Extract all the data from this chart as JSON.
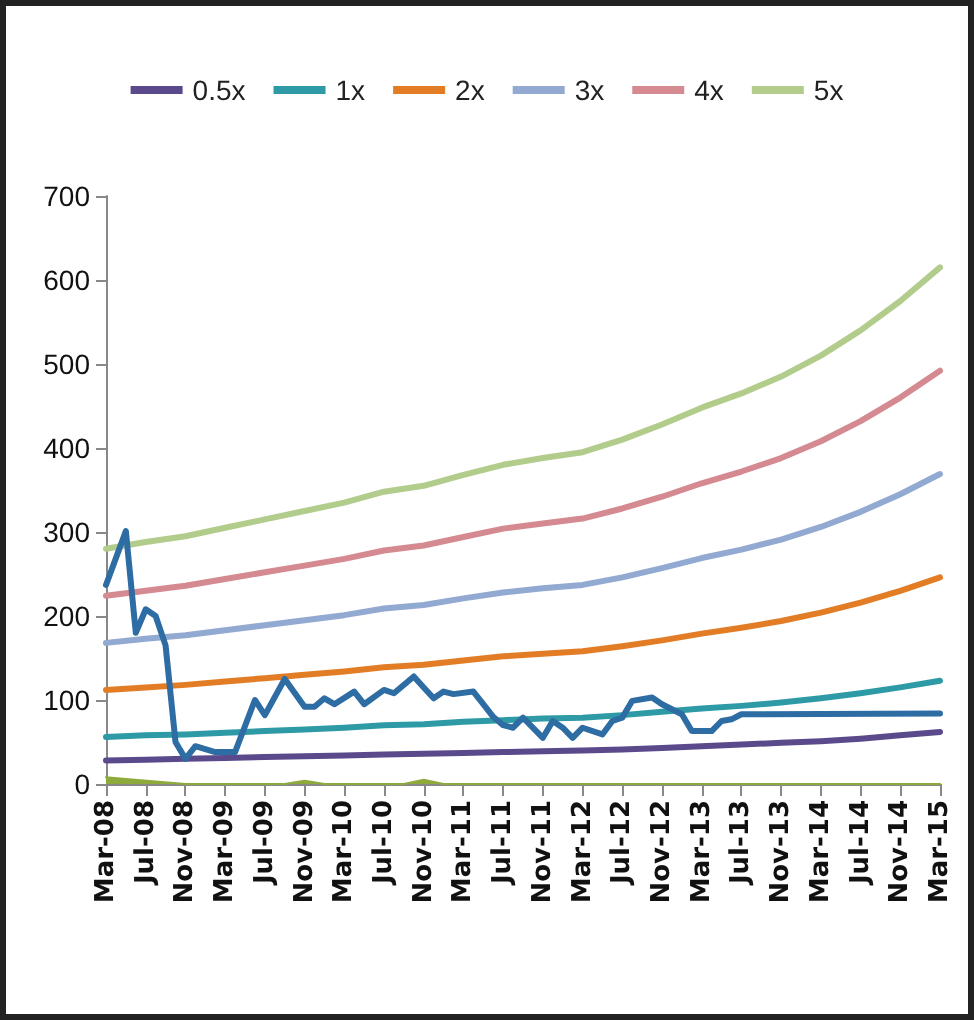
{
  "chart_data": {
    "type": "line",
    "legend": "top",
    "marker": "none",
    "x": [
      "2008-03",
      "2008-07",
      "2008-11",
      "2009-03",
      "2009-07",
      "2009-11",
      "2010-03",
      "2010-07",
      "2010-11",
      "2011-03",
      "2011-07",
      "2011-11",
      "2012-03",
      "2012-07",
      "2012-11",
      "2013-03",
      "2013-07",
      "2013-11",
      "2014-03",
      "2014-07",
      "2014-11",
      "2015-03"
    ],
    "xlim": [
      "2008-03",
      "2015-03"
    ],
    "xticks": [
      {
        "value": "2008-03",
        "label": "Mar-08"
      },
      {
        "value": "2008-07",
        "label": "Jul-08"
      },
      {
        "value": "2008-11",
        "label": "Nov-08"
      },
      {
        "value": "2009-03",
        "label": "Mar-09"
      },
      {
        "value": "2009-07",
        "label": "Jul-09"
      },
      {
        "value": "2009-11",
        "label": "Nov-09"
      },
      {
        "value": "2010-03",
        "label": "Mar-10"
      },
      {
        "value": "2010-07",
        "label": "Jul-10"
      },
      {
        "value": "2010-11",
        "label": "Nov-10"
      },
      {
        "value": "2011-03",
        "label": "Mar-11"
      },
      {
        "value": "2011-07",
        "label": "Jul-11"
      },
      {
        "value": "2011-11",
        "label": "Nov-11"
      },
      {
        "value": "2012-03",
        "label": "Mar-12"
      },
      {
        "value": "2012-07",
        "label": "Jul-12"
      },
      {
        "value": "2012-11",
        "label": "Nov-12"
      },
      {
        "value": "2013-03",
        "label": "Mar-13"
      },
      {
        "value": "2013-07",
        "label": "Jul-13"
      },
      {
        "value": "2013-11",
        "label": "Nov-13"
      },
      {
        "value": "2014-03",
        "label": "Mar-14"
      },
      {
        "value": "2014-07",
        "label": "Jul-14"
      },
      {
        "value": "2014-11",
        "label": "Nov-14"
      },
      {
        "value": "2015-03",
        "label": "Mar-15"
      }
    ],
    "ylim": [
      0,
      700
    ],
    "yticks": [
      0,
      100,
      200,
      300,
      400,
      500,
      600,
      700
    ],
    "series": [
      {
        "type": "area",
        "color": "#8faa3c",
        "x": [
          "2008-03",
          "2008-05",
          "2008-08",
          "2008-11",
          "2009-09",
          "2009-11",
          "2010-01",
          "2010-09",
          "2010-11",
          "2011-01",
          "2015-03"
        ],
        "values": [
          8,
          6,
          3,
          0,
          0,
          4,
          0,
          0,
          5,
          0,
          0
        ]
      },
      {
        "name": "0.5x",
        "color": "#5b4a8b",
        "values": [
          28,
          29,
          30,
          31,
          32,
          33,
          34,
          35,
          36,
          37,
          38,
          39,
          40,
          41,
          43,
          45,
          47,
          49,
          51,
          54,
          58,
          62
        ]
      },
      {
        "name": "1x",
        "color": "#2e9aa6",
        "values": [
          56,
          58,
          59,
          61,
          63,
          65,
          67,
          70,
          71,
          74,
          76,
          78,
          79,
          82,
          86,
          90,
          93,
          97,
          102,
          108,
          115,
          123
        ]
      },
      {
        "name": "2x",
        "color": "#e27d26",
        "values": [
          112,
          115,
          118,
          122,
          126,
          130,
          134,
          139,
          142,
          147,
          152,
          155,
          158,
          164,
          171,
          179,
          186,
          194,
          204,
          216,
          230,
          246
        ]
      },
      {
        "name": "3x",
        "color": "#92a9d1",
        "values": [
          168,
          173,
          177,
          183,
          189,
          195,
          201,
          209,
          213,
          221,
          228,
          233,
          237,
          246,
          257,
          269,
          279,
          291,
          306,
          324,
          345,
          369
        ]
      },
      {
        "name": "4x",
        "color": "#d48a90",
        "values": [
          224,
          230,
          236,
          244,
          252,
          260,
          268,
          278,
          284,
          294,
          304,
          310,
          316,
          328,
          342,
          358,
          372,
          388,
          408,
          432,
          460,
          492
        ]
      },
      {
        "name": "5x",
        "color": "#b2cc8c",
        "values": [
          280,
          288,
          295,
          305,
          315,
          325,
          335,
          348,
          355,
          368,
          380,
          388,
          395,
          410,
          428,
          448,
          465,
          485,
          510,
          540,
          575,
          615
        ]
      },
      {
        "color": "#2e6ca4",
        "x": [
          "2008-03",
          "2008-05",
          "2008-06",
          "2008-07",
          "2008-08",
          "2008-09",
          "2008-10",
          "2008-11",
          "2008-12",
          "2009-02",
          "2009-04",
          "2009-06",
          "2009-07",
          "2009-09",
          "2009-11",
          "2009-12",
          "2010-01",
          "2010-02",
          "2010-04",
          "2010-05",
          "2010-07",
          "2010-08",
          "2010-10",
          "2010-11",
          "2010-12",
          "2011-01",
          "2011-02",
          "2011-04",
          "2011-05",
          "2011-06",
          "2011-07",
          "2011-08",
          "2011-09",
          "2011-11",
          "2011-12",
          "2012-01",
          "2012-02",
          "2012-03",
          "2012-05",
          "2012-06",
          "2012-07",
          "2012-08",
          "2012-10",
          "2012-11",
          "2013-01",
          "2013-02",
          "2013-04",
          "2013-05",
          "2013-06",
          "2013-07",
          "2015-03"
        ],
        "values": [
          237,
          301,
          180,
          208,
          200,
          165,
          50,
          30,
          45,
          38,
          38,
          100,
          82,
          125,
          92,
          92,
          102,
          95,
          110,
          95,
          112,
          108,
          128,
          115,
          102,
          110,
          107,
          110,
          95,
          80,
          70,
          67,
          79,
          55,
          75,
          67,
          55,
          67,
          59,
          75,
          79,
          99,
          103,
          95,
          83,
          63,
          63,
          75,
          77,
          83,
          84
        ]
      }
    ]
  }
}
